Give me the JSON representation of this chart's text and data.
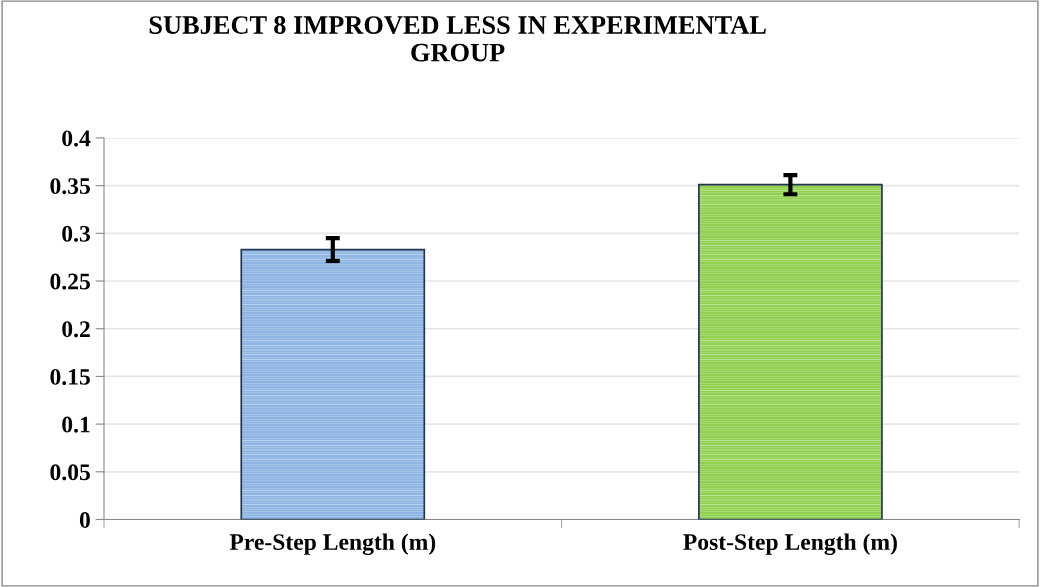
{
  "chart_data": {
    "type": "bar",
    "title": "SUBJECT 8 IMPROVED LESS IN EXPERIMENTAL\nGROUP",
    "categories": [
      "Pre-Step Length (m)",
      "Post-Step Length (m)"
    ],
    "values": [
      0.283,
      0.351
    ],
    "errors": [
      0.012,
      0.01
    ],
    "colors": [
      "#8db4e2",
      "#92d050"
    ],
    "ylim": [
      0,
      0.4
    ],
    "yticks": [
      0,
      0.05,
      0.1,
      0.15,
      0.2,
      0.25,
      0.3,
      0.35,
      0.4
    ],
    "grid": "y"
  }
}
